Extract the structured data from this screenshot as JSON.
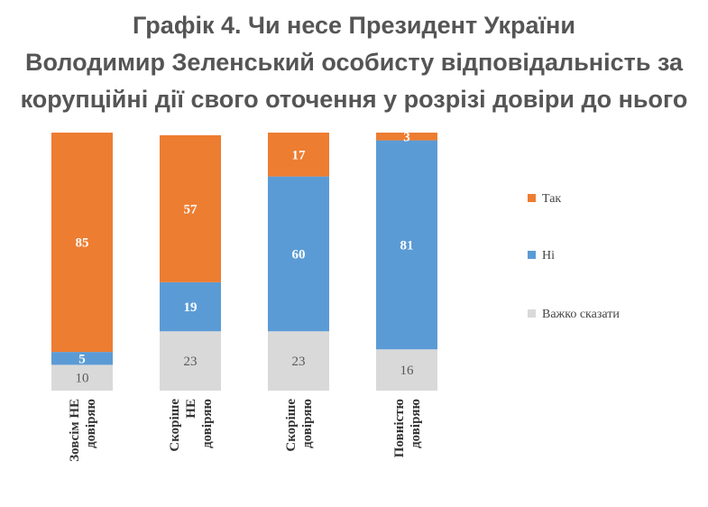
{
  "chart_data": {
    "type": "bar",
    "stacked": true,
    "title_lines": [
      "Графік 4. Чи несе Президент України",
      "Володимир Зеленський особисту відповідальність за",
      "корупційні дії свого оточення у розрізі довіри до нього"
    ],
    "categories": [
      [
        "Зовсім НЕ",
        "довіряю"
      ],
      [
        "Скоріше",
        "НЕ",
        "довіряю"
      ],
      [
        "Скоріше",
        "довіряю"
      ],
      [
        "Повністю",
        "довіряю"
      ]
    ],
    "series": [
      {
        "name": "Важко сказати",
        "color": "#d9d9d9",
        "label_color": "#595959",
        "values": [
          10,
          23,
          23,
          16
        ]
      },
      {
        "name": "Ні",
        "color": "#5b9bd5",
        "label_color": "#ffffff",
        "values": [
          5,
          19,
          60,
          81
        ]
      },
      {
        "name": "Так",
        "color": "#ed7d31",
        "label_color": "#ffffff",
        "values": [
          85,
          57,
          17,
          3
        ]
      }
    ],
    "legend_order": [
      "Так",
      "Ні",
      "Важко сказати"
    ],
    "legend_position": "right",
    "ylim": [
      0,
      100
    ],
    "grid": false
  }
}
